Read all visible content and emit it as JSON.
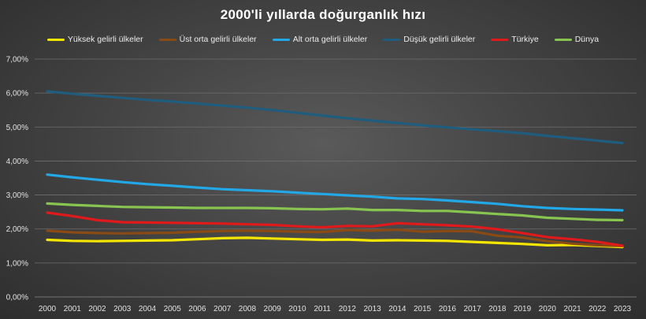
{
  "chart_data": {
    "type": "line",
    "title": "2000'li yıllarda doğurganlık hızı",
    "xlabel": "",
    "ylabel": "",
    "ylim": [
      0,
      7
    ],
    "y_ticks": [
      "0,00%",
      "1,00%",
      "2,00%",
      "3,00%",
      "4,00%",
      "5,00%",
      "6,00%",
      "7,00%"
    ],
    "grid": true,
    "legend_position": "top",
    "x": [
      "2000",
      "2001",
      "2002",
      "2003",
      "2004",
      "2005",
      "2006",
      "2007",
      "2008",
      "2009",
      "2010",
      "2011",
      "2012",
      "2013",
      "2014",
      "2015",
      "2016",
      "2017",
      "2018",
      "2019",
      "2020",
      "2021",
      "2022",
      "2023"
    ],
    "series": [
      {
        "name": "Yüksek gelirli ülkeler",
        "color": "#f5e600",
        "values": [
          1.68,
          1.65,
          1.64,
          1.65,
          1.66,
          1.67,
          1.7,
          1.73,
          1.74,
          1.72,
          1.7,
          1.68,
          1.69,
          1.66,
          1.67,
          1.66,
          1.65,
          1.62,
          1.59,
          1.56,
          1.52,
          1.53,
          1.5,
          1.47
        ]
      },
      {
        "name": "Üst orta gelirli ülkeler",
        "color": "#8a4a16",
        "values": [
          1.95,
          1.9,
          1.88,
          1.87,
          1.88,
          1.89,
          1.92,
          1.94,
          1.95,
          1.94,
          1.92,
          1.91,
          1.97,
          1.95,
          1.98,
          1.92,
          1.94,
          1.93,
          1.8,
          1.75,
          1.64,
          1.57,
          1.52,
          1.5
        ]
      },
      {
        "name": "Alt orta gelirli ülkeler",
        "color": "#22a8e6",
        "values": [
          3.6,
          3.52,
          3.45,
          3.38,
          3.32,
          3.27,
          3.22,
          3.17,
          3.14,
          3.11,
          3.07,
          3.03,
          2.99,
          2.95,
          2.9,
          2.88,
          2.84,
          2.79,
          2.74,
          2.67,
          2.62,
          2.59,
          2.57,
          2.55
        ]
      },
      {
        "name": "Düşük gelirli ülkeler",
        "color": "#1f5d7e",
        "values": [
          6.05,
          5.98,
          5.92,
          5.86,
          5.8,
          5.75,
          5.69,
          5.63,
          5.57,
          5.5,
          5.42,
          5.34,
          5.26,
          5.19,
          5.12,
          5.05,
          4.99,
          4.93,
          4.88,
          4.82,
          4.74,
          4.67,
          4.6,
          4.53
        ]
      },
      {
        "name": "Türkiye",
        "color": "#e0191b",
        "values": [
          2.48,
          2.38,
          2.26,
          2.2,
          2.19,
          2.18,
          2.17,
          2.16,
          2.14,
          2.12,
          2.08,
          2.05,
          2.09,
          2.08,
          2.17,
          2.14,
          2.11,
          2.07,
          1.99,
          1.88,
          1.76,
          1.7,
          1.62,
          1.51
        ]
      },
      {
        "name": "Dünya",
        "color": "#88c450",
        "values": [
          2.75,
          2.71,
          2.68,
          2.65,
          2.64,
          2.63,
          2.62,
          2.62,
          2.62,
          2.61,
          2.59,
          2.58,
          2.6,
          2.56,
          2.56,
          2.53,
          2.53,
          2.49,
          2.44,
          2.4,
          2.33,
          2.3,
          2.27,
          2.26
        ]
      }
    ]
  }
}
